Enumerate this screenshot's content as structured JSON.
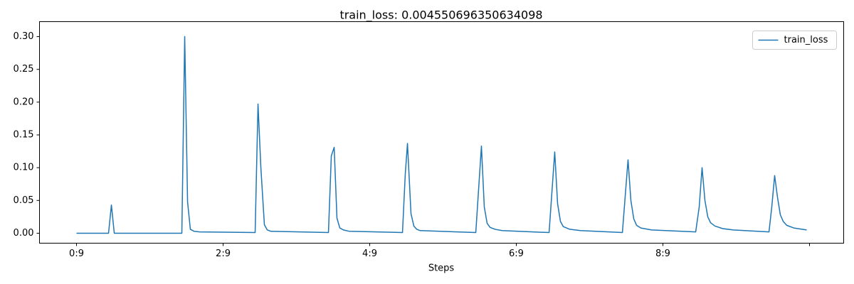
{
  "chart_data": {
    "type": "line",
    "title": "train_loss: 0.004550696350634098",
    "x_label": "Steps",
    "x": [
      0,
      4.37,
      4.76,
      5.15,
      14.37,
      14.76,
      15.15,
      15.53,
      16.02,
      16.8,
      24.37,
      24.76,
      25.15,
      25.63,
      26.02,
      26.5,
      34.37,
      34.76,
      35.15,
      35.53,
      35.92,
      36.41,
      37.18,
      44.47,
      44.85,
      45.15,
      45.63,
      46.02,
      46.41,
      46.89,
      54.47,
      55.24,
      55.63,
      56.02,
      56.41,
      57.09,
      58.06,
      64.47,
      65.24,
      65.63,
      66.02,
      66.41,
      67.28,
      68.74,
      74.47,
      75.24,
      75.63,
      76.02,
      76.41,
      76.99,
      78.45,
      84.47,
      84.95,
      85.34,
      85.73,
      86.12,
      86.5,
      87.09,
      88.16,
      89.61,
      94.47,
      94.85,
      95.24,
      95.63,
      96.02,
      96.41,
      96.89,
      97.86,
      99.61
    ],
    "series": [
      {
        "name": "train_loss",
        "color": "#1f77b4",
        "values": [
          0,
          0,
          0.043,
          0,
          0,
          0.3,
          0.048,
          0.006,
          0.003,
          0.002,
          0.001,
          0.197,
          0.1,
          0.013,
          0.005,
          0.003,
          0.001,
          0.118,
          0.131,
          0.023,
          0.008,
          0.005,
          0.003,
          0.001,
          0.09,
          0.137,
          0.03,
          0.011,
          0.006,
          0.004,
          0.001,
          0.133,
          0.04,
          0.015,
          0.009,
          0.006,
          0.004,
          0.001,
          0.124,
          0.045,
          0.018,
          0.01,
          0.006,
          0.004,
          0.001,
          0.112,
          0.05,
          0.022,
          0.012,
          0.008,
          0.005,
          0.002,
          0.04,
          0.1,
          0.05,
          0.025,
          0.016,
          0.011,
          0.007,
          0.005,
          0.002,
          0.04,
          0.088,
          0.055,
          0.028,
          0.018,
          0.012,
          0.008,
          0.005
        ]
      }
    ],
    "xlim": [
      -5.05,
      104.66
    ],
    "xticks": [
      {
        "value": 0,
        "label": "0:9"
      },
      {
        "value": 20,
        "label": "2:9"
      },
      {
        "value": 40,
        "label": "4:9"
      },
      {
        "value": 60,
        "label": "6:9"
      },
      {
        "value": 80,
        "label": "8:9"
      },
      {
        "value": 100,
        "label": null
      }
    ],
    "ylim": [
      -0.0152,
      0.3228
    ],
    "yticks": [
      {
        "value": 0,
        "label": "0.00"
      },
      {
        "value": 0.05,
        "label": "0.05"
      },
      {
        "value": 0.1,
        "label": "0.10"
      },
      {
        "value": 0.15,
        "label": "0.15"
      },
      {
        "value": 0.2,
        "label": "0.20"
      },
      {
        "value": 0.25,
        "label": "0.25"
      },
      {
        "value": 0.3,
        "label": "0.30"
      }
    ],
    "legend": "upper right",
    "grid": false
  }
}
